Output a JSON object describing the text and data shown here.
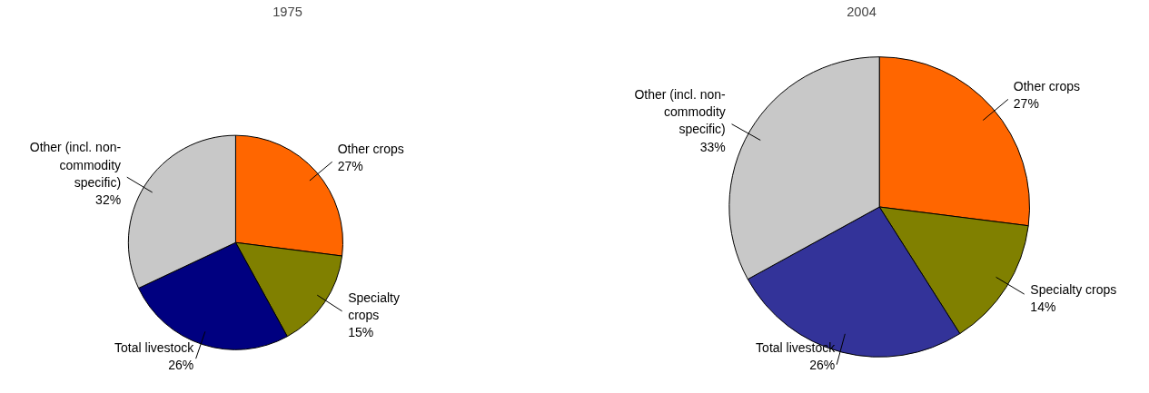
{
  "chart_data": [
    {
      "type": "pie",
      "title": "1975",
      "categories": [
        "Other crops",
        "Specialty\ncrops",
        "Total livestock",
        "Other (incl. non-\ncommodity\nspecific)"
      ],
      "values": [
        27,
        15,
        26,
        32
      ],
      "value_labels": [
        "27%",
        "15%",
        "26%",
        "32%"
      ],
      "colors": [
        "#ff6600",
        "#808000",
        "#000080",
        "#c8c8c8"
      ]
    },
    {
      "type": "pie",
      "title": "2004",
      "categories": [
        "Other crops",
        "Specialty crops",
        "Total livestock",
        "Other (incl. non-\ncommodity\nspecific)"
      ],
      "values": [
        27,
        14,
        26,
        33
      ],
      "value_labels": [
        "27%",
        "14%",
        "26%",
        "33%"
      ],
      "colors": [
        "#ff6600",
        "#808000",
        "#333399",
        "#c8c8c8"
      ]
    }
  ]
}
